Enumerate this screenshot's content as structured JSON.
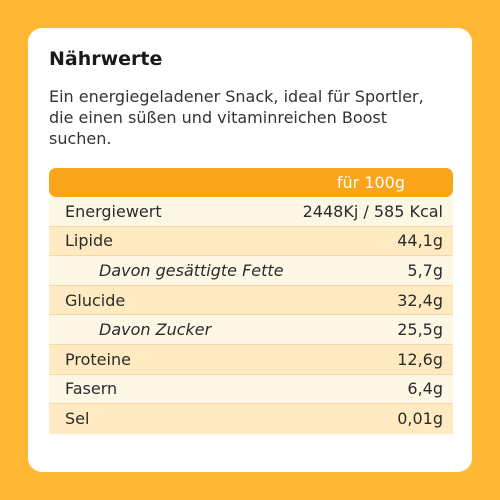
{
  "title": "Nährwerte",
  "description": "Ein energiegeladener Snack, ideal für Sportler, die einen süßen und vitaminreichen Boost suchen.",
  "table": {
    "header": "für 100g",
    "rows": [
      {
        "label": "Energiewert",
        "value": "2448Kj / 585 Kcal"
      },
      {
        "label": "Lipide",
        "value": "44,1g"
      },
      {
        "label": "Davon gesättigte Fette",
        "value": "5,7g"
      },
      {
        "label": "Glucide",
        "value": "32,4g"
      },
      {
        "label": "Davon Zucker",
        "value": "25,5g"
      },
      {
        "label": "Proteine",
        "value": "12,6g"
      },
      {
        "label": "Fasern",
        "value": "6,4g"
      },
      {
        "label": "Sel",
        "value": "0,01g"
      }
    ]
  }
}
